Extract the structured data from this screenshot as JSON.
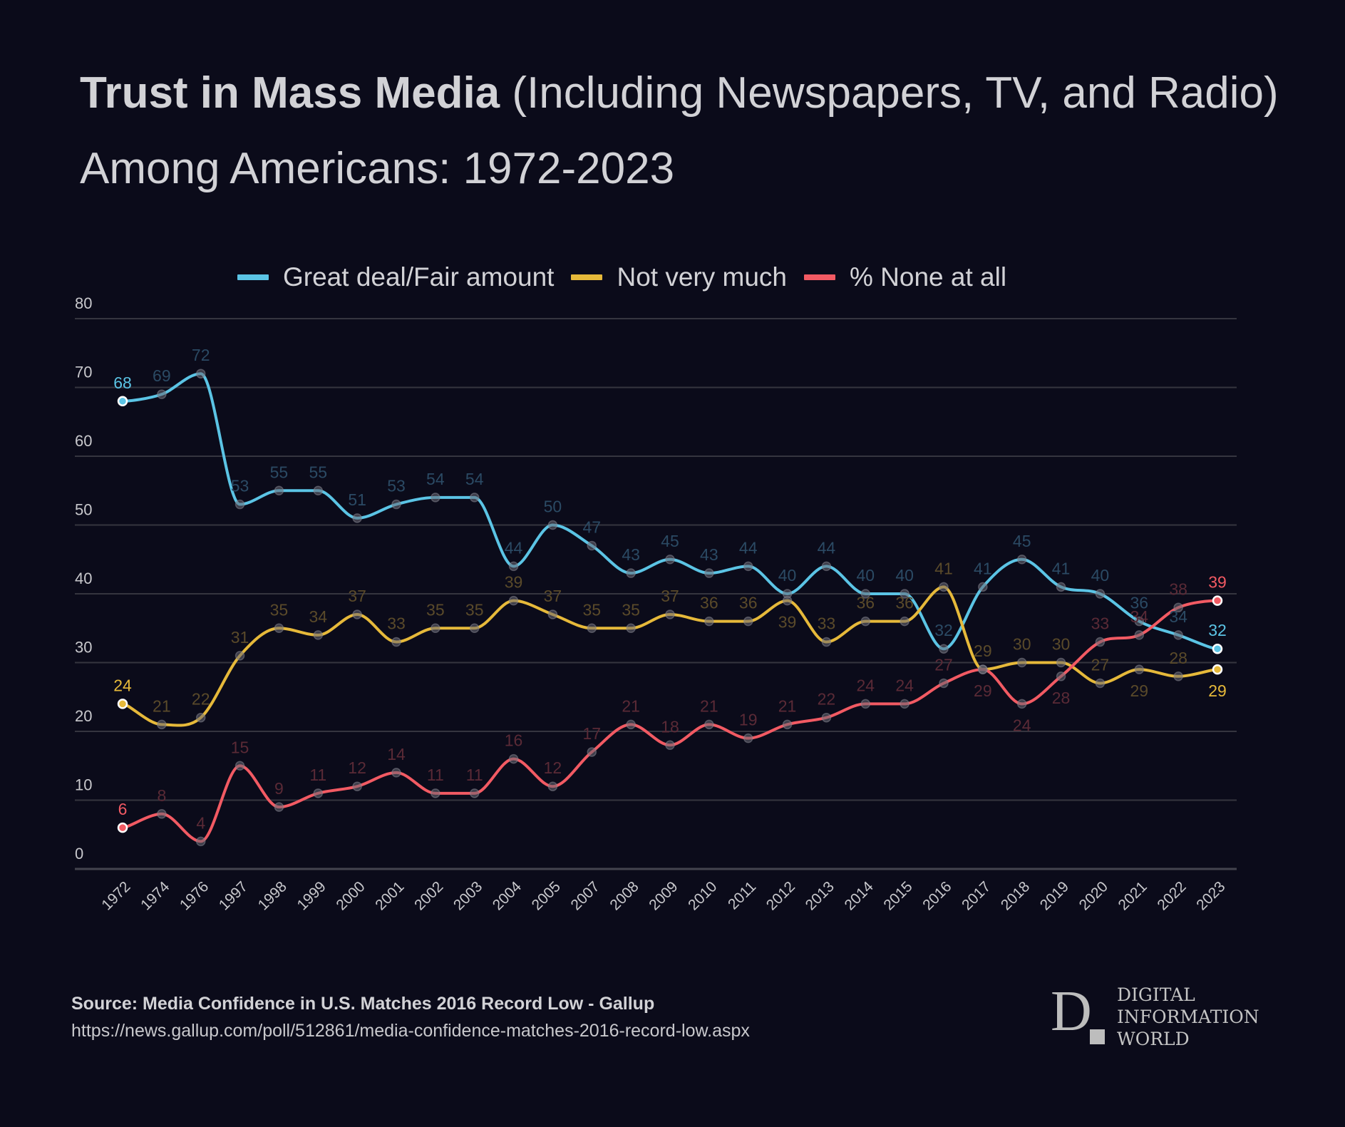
{
  "title": {
    "bold": "Trust in Mass Media",
    "rest": " (Including Newspapers, TV, and Radio) Among Americans: 1972-2023"
  },
  "legend": [
    {
      "label": "Great deal/Fair amount",
      "color": "#5bc4e5"
    },
    {
      "label": "Not very much",
      "color": "#e6b93a"
    },
    {
      "label": "% None at all",
      "color": "#f25a63"
    }
  ],
  "source": {
    "label": "Source: Media Confidence in U.S. Matches 2016 Record Low - Gallup",
    "url": "https://news.gallup.com/poll/512861/media-confidence-matches-2016-record-low.aspx"
  },
  "logo": {
    "letter": "D",
    "lines": [
      "DIGITAL",
      "INFORMATION",
      "WORLD"
    ]
  },
  "chart_data": {
    "type": "line",
    "title": "Trust in Mass Media (Including Newspapers, TV, and Radio) Among Americans: 1972-2023",
    "xlabel": "",
    "ylabel": "",
    "ylim": [
      0,
      80
    ],
    "yticks": [
      0,
      10,
      20,
      30,
      40,
      50,
      60,
      70,
      80
    ],
    "grid": true,
    "legend_position": "top-center",
    "smooth": true,
    "categories": [
      "1972",
      "1974",
      "1976",
      "1997",
      "1998",
      "1999",
      "2000",
      "2001",
      "2002",
      "2003",
      "2004",
      "2005",
      "2007",
      "2008",
      "2009",
      "2010",
      "2011",
      "2012",
      "2013",
      "2014",
      "2015",
      "2016",
      "2017",
      "2018",
      "2019",
      "2020",
      "2021",
      "2022",
      "2023"
    ],
    "series": [
      {
        "name": "Great deal/Fair amount",
        "color": "#5bc4e5",
        "label_color": "#2b4a64",
        "values": [
          68,
          69,
          72,
          53,
          55,
          55,
          51,
          53,
          54,
          54,
          44,
          50,
          47,
          43,
          45,
          43,
          44,
          40,
          44,
          40,
          40,
          32,
          41,
          45,
          41,
          40,
          36,
          34,
          32
        ]
      },
      {
        "name": "Not very much",
        "color": "#e6b93a",
        "label_color": "#5a4a2a",
        "values": [
          24,
          21,
          22,
          31,
          35,
          34,
          37,
          33,
          35,
          35,
          39,
          37,
          35,
          35,
          37,
          36,
          36,
          39,
          33,
          36,
          36,
          41,
          29,
          30,
          30,
          27,
          29,
          28,
          29
        ]
      },
      {
        "name": "% None at all",
        "color": "#f25a63",
        "label_color": "#5a2a36",
        "values": [
          6,
          8,
          4,
          15,
          9,
          11,
          12,
          14,
          11,
          11,
          16,
          12,
          17,
          21,
          18,
          21,
          19,
          21,
          22,
          24,
          24,
          27,
          29,
          24,
          28,
          33,
          34,
          38,
          39
        ]
      }
    ]
  }
}
